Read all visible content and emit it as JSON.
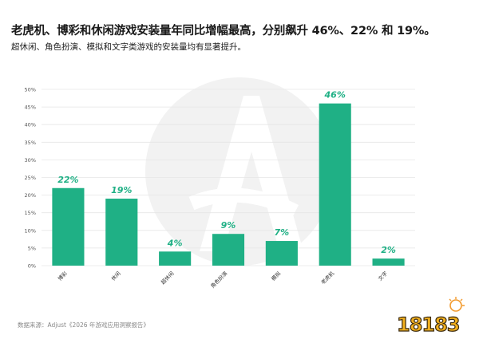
{
  "title": "老虎机、博彩和休闲游戏安装量年同比增幅最高，分别飙升 46%、22% 和 19%。",
  "subtitle": "超休闲、角色扮演、模拟和文字类游戏的安装量均有显著提升。",
  "footnote": "数据来源：Adjust《2026 年游戏应用洞察报告》",
  "logo_text": "18183",
  "colors": {
    "bar": "#1fb085",
    "label": "#1fb085",
    "grid": "#e6e6e6",
    "watermark": "#f1f1f1"
  },
  "chart_data": {
    "type": "bar",
    "categories": [
      "博彩",
      "休闲",
      "超休闲",
      "角色扮演",
      "模拟",
      "老虎机",
      "文字"
    ],
    "values": [
      22,
      19,
      4,
      9,
      7,
      46,
      2
    ],
    "data_labels": [
      "22%",
      "19%",
      "4%",
      "9%",
      "7%",
      "46%",
      "2%"
    ],
    "ylim": [
      0,
      50
    ],
    "y_ticks": [
      "0%",
      "5%",
      "10%",
      "15%",
      "20%",
      "25%",
      "30%",
      "35%",
      "40%",
      "45%",
      "50%"
    ],
    "grid": true,
    "title": "",
    "xlabel": "",
    "ylabel": ""
  }
}
